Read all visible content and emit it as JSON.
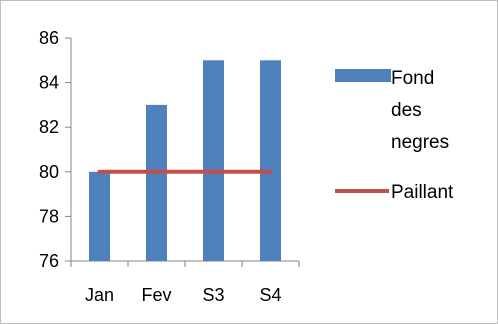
{
  "chart_data": {
    "type": "bar",
    "categories": [
      "Jan",
      "Fev",
      "S3",
      "S4"
    ],
    "series": [
      {
        "name": "Fond des negres",
        "kind": "bar",
        "values": [
          80,
          83,
          85,
          85
        ],
        "color": "#4f81bd"
      },
      {
        "name": "Paillant",
        "kind": "line",
        "values": [
          80,
          80,
          80,
          80
        ],
        "color": "#c0504d"
      }
    ],
    "ylim": [
      76,
      86
    ],
    "yticks": [
      76,
      78,
      80,
      82,
      84,
      86
    ],
    "title": "",
    "xlabel": "",
    "ylabel": "",
    "grid": false,
    "legend_position": "right",
    "legend_lines": [
      [
        "Fond",
        "des",
        "negres"
      ],
      [
        "Paillant"
      ]
    ]
  }
}
